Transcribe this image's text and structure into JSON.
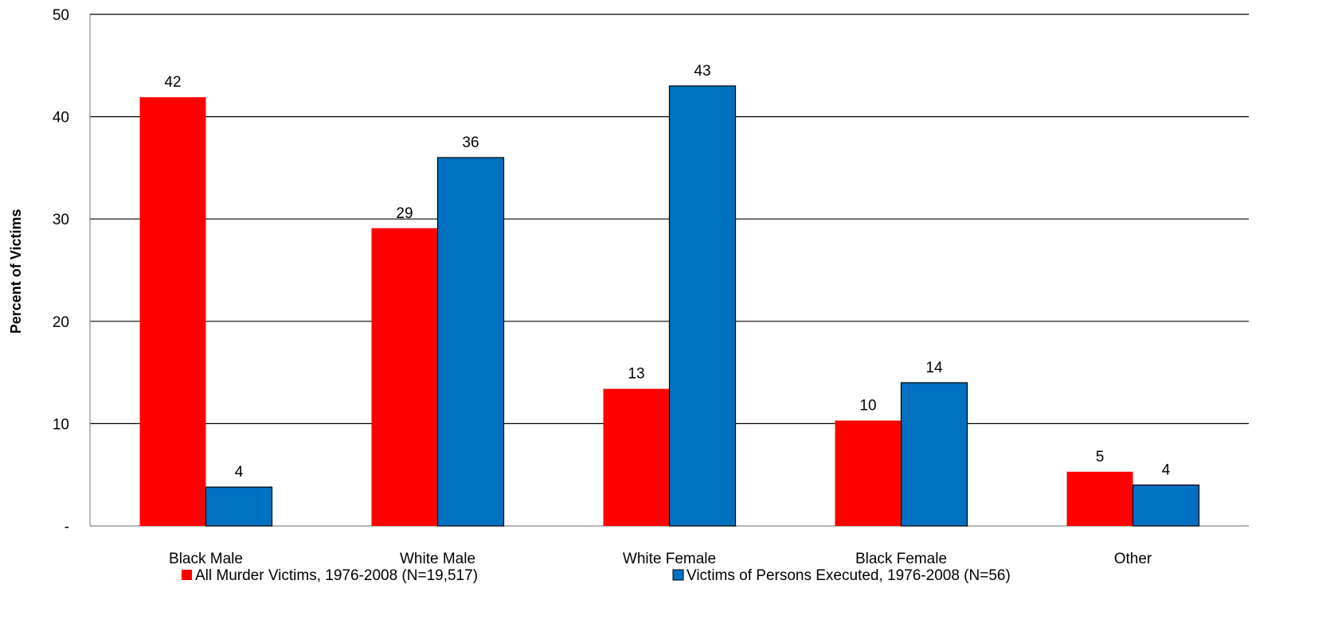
{
  "chart_data": {
    "type": "bar",
    "title": "",
    "xlabel": "",
    "ylabel": "Percent of Victims",
    "ylim": [
      0,
      50
    ],
    "yticks": [
      {
        "value": 0,
        "label": "-"
      },
      {
        "value": 10,
        "label": "10"
      },
      {
        "value": 20,
        "label": "20"
      },
      {
        "value": 30,
        "label": "30"
      },
      {
        "value": 40,
        "label": "40"
      },
      {
        "value": 50,
        "label": "50"
      }
    ],
    "grid": true,
    "legend_position": "bottom",
    "categories": [
      "Black Male",
      "White Male",
      "White Female",
      "Black Female",
      "Other"
    ],
    "series": [
      {
        "name": "All Murder Victims, 1976-2008 (N=19,517)",
        "color": "#ff0000",
        "values": [
          41.9,
          29.1,
          13.4,
          10.3,
          5.3
        ],
        "labels": [
          "42",
          "29",
          "13",
          "10",
          "5"
        ]
      },
      {
        "name": "Victims of Persons Executed, 1976-2008 (N=56)",
        "color": "#0070c0",
        "values": [
          3.8,
          36.0,
          43.0,
          14.0,
          4.0
        ],
        "labels": [
          "4",
          "36",
          "43",
          "14",
          "4"
        ]
      }
    ]
  }
}
